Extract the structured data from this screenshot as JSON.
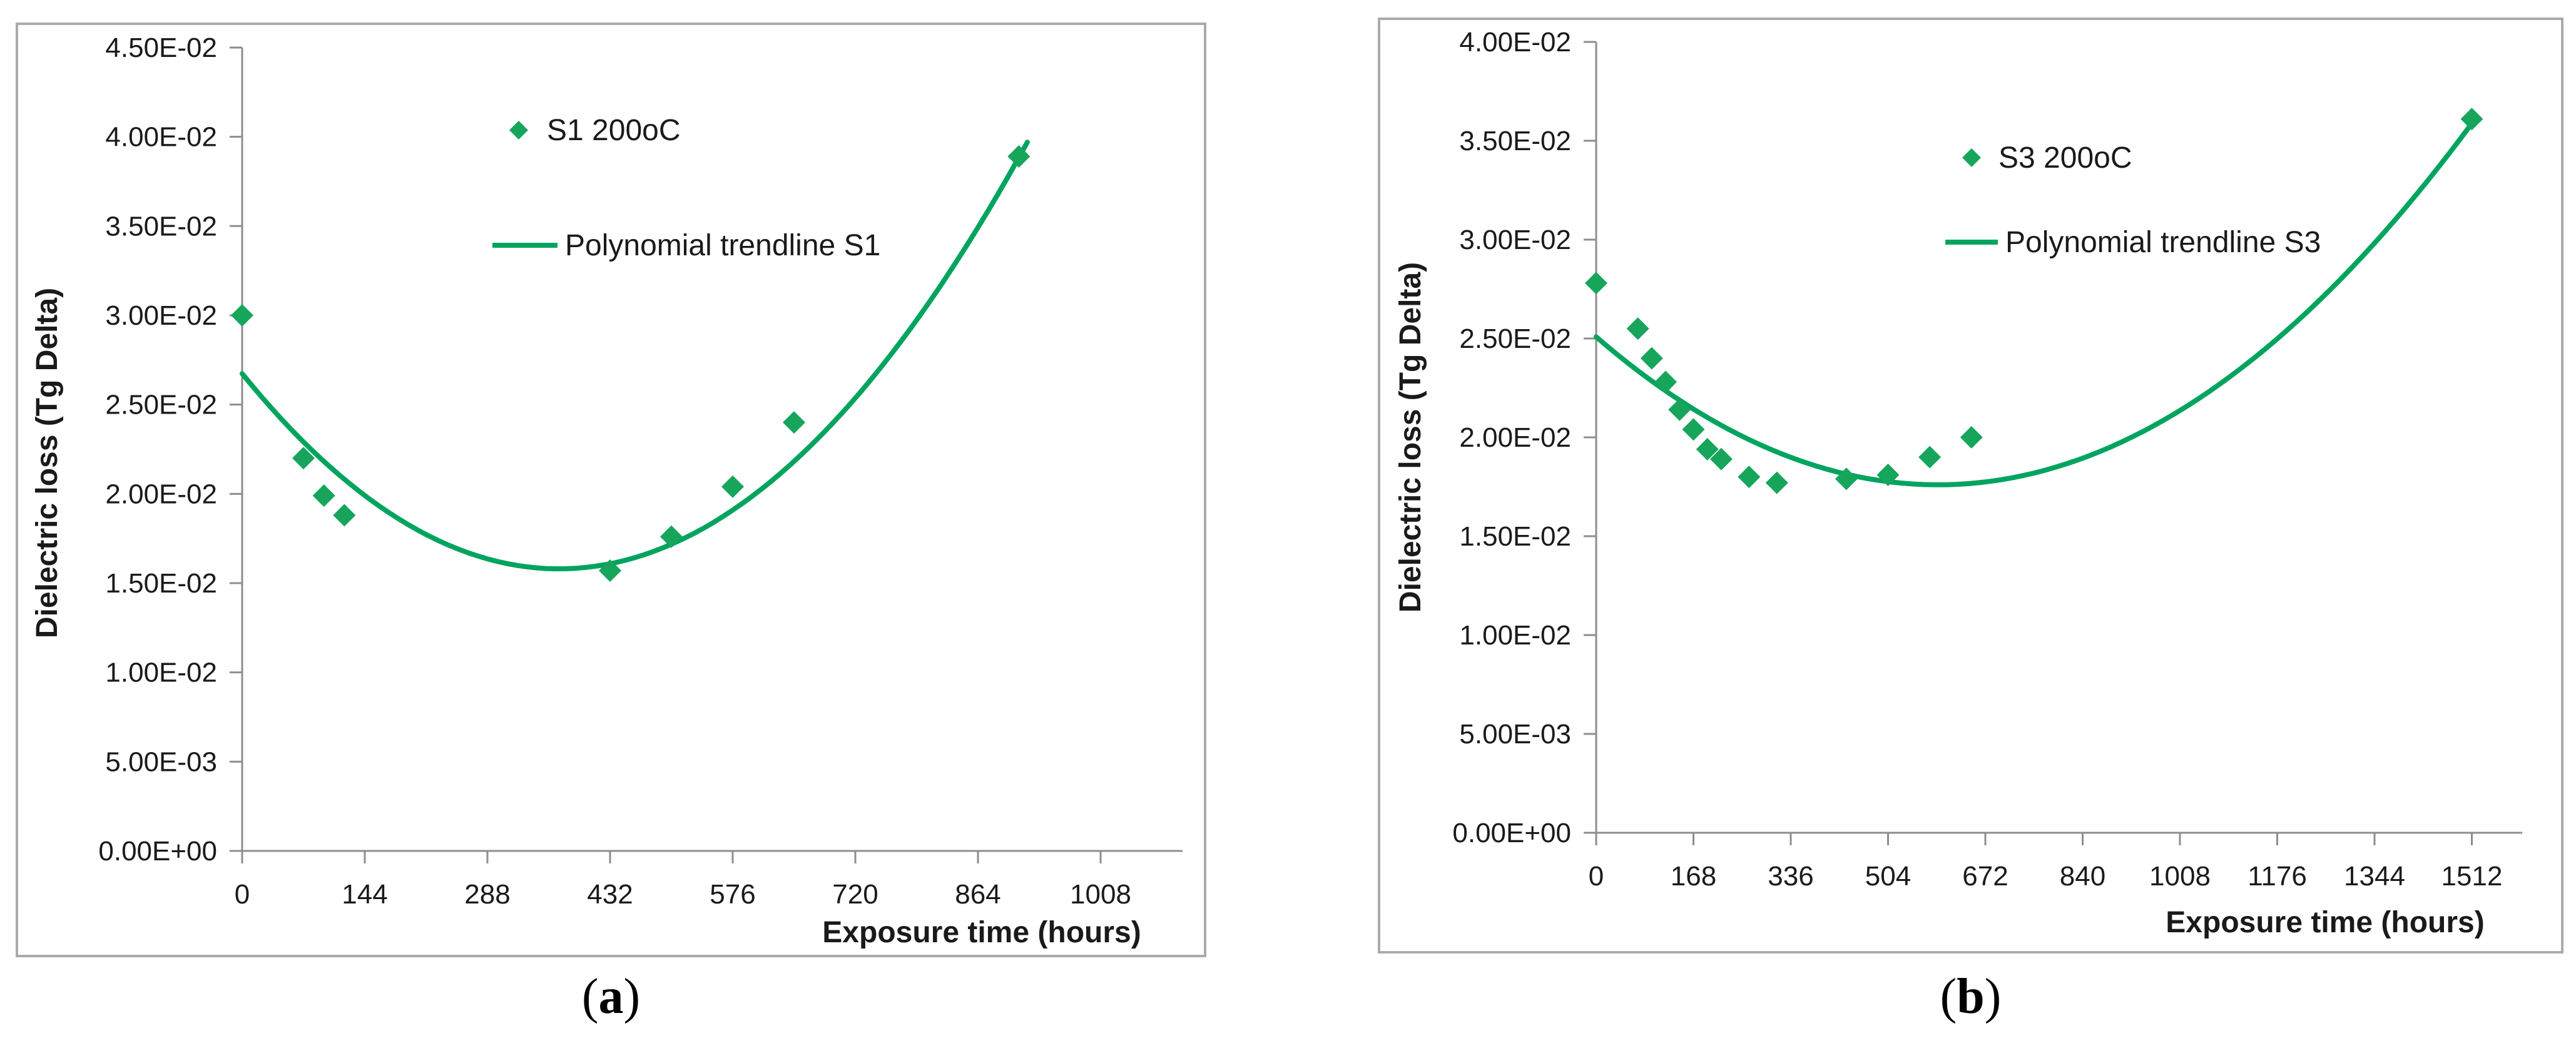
{
  "ui": {
    "paren_open": "(",
    "paren_close": ")"
  },
  "colors": {
    "marker_green": "#17A55C",
    "trendline_green": "#00A45F",
    "axis_gray": "#8E8E8E",
    "panel_border": "#ABABAB",
    "text": "#1A1A1A"
  },
  "chart_data": [
    {
      "id": "chart-a",
      "type": "scatter",
      "caption_letter": "a",
      "xlabel": "Exposure time (hours)",
      "ylabel": "Dielectric loss (Tg Delta)",
      "x_ticks": [
        0,
        144,
        288,
        432,
        576,
        720,
        864,
        1008
      ],
      "xlim": [
        0,
        1086
      ],
      "y_tick_labels": [
        "0.00E+00",
        "5.00E-03",
        "1.00E-02",
        "1.50E-02",
        "2.00E-02",
        "2.50E-02",
        "3.00E-02",
        "3.50E-02",
        "4.00E-02",
        "4.50E-02"
      ],
      "ylim": [
        0,
        0.045
      ],
      "y_step": 0.005,
      "grid": false,
      "legend_position": "top-center-inside",
      "legend": [
        {
          "swatch": "diamond",
          "label": "S1 200oC"
        },
        {
          "swatch": "line",
          "label": "Polynomial trendline S1"
        }
      ],
      "series": [
        {
          "name": "S1 200oC",
          "marker": "diamond",
          "points": [
            [
              0,
              0.03
            ],
            [
              72,
              0.022
            ],
            [
              96,
              0.0199
            ],
            [
              120,
              0.0188
            ],
            [
              432,
              0.0157
            ],
            [
              504,
              0.0176
            ],
            [
              576,
              0.0204
            ],
            [
              648,
              0.024
            ],
            [
              912,
              0.0389
            ]
          ]
        }
      ],
      "trendline": {
        "name": "Polynomial trendline S1",
        "form": "y = a*(x - x0)^2 + c",
        "a": 7.9e-08,
        "x0": 372,
        "c": 0.0158,
        "x_range": [
          0,
          922
        ]
      }
    },
    {
      "id": "chart-b",
      "type": "scatter",
      "caption_letter": "b",
      "xlabel": "Exposure time (hours)",
      "ylabel": "Dielectric loss (Tg Delta)",
      "x_ticks": [
        0,
        168,
        336,
        504,
        672,
        840,
        1008,
        1176,
        1344,
        1512
      ],
      "xlim": [
        0,
        1599
      ],
      "y_tick_labels": [
        "0.00E+00",
        "5.00E-03",
        "1.00E-02",
        "1.50E-02",
        "2.00E-02",
        "2.50E-02",
        "3.00E-02",
        "3.50E-02",
        "4.00E-02"
      ],
      "ylim": [
        0,
        0.04
      ],
      "y_step": 0.005,
      "grid": false,
      "legend_position": "top-center-inside",
      "legend": [
        {
          "swatch": "diamond",
          "label": "S3 200oC"
        },
        {
          "swatch": "line",
          "label": "Polynomial trendline S3"
        }
      ],
      "series": [
        {
          "name": "S3 200oC",
          "marker": "diamond",
          "points": [
            [
              0,
              0.0278
            ],
            [
              72,
              0.0255
            ],
            [
              96,
              0.024
            ],
            [
              120,
              0.0228
            ],
            [
              144,
              0.0214
            ],
            [
              168,
              0.0204
            ],
            [
              192,
              0.0194
            ],
            [
              216,
              0.0189
            ],
            [
              264,
              0.018
            ],
            [
              312,
              0.0177
            ],
            [
              432,
              0.0179
            ],
            [
              504,
              0.0181
            ],
            [
              576,
              0.019
            ],
            [
              648,
              0.02
            ],
            [
              1512,
              0.0361
            ]
          ]
        }
      ],
      "trendline": {
        "name": "Polynomial trendline S3",
        "form": "y = a*(x - x0)^2 + c",
        "a": 2.15e-08,
        "x0": 590,
        "c": 0.0176,
        "x_range": [
          0,
          1512
        ]
      }
    }
  ]
}
